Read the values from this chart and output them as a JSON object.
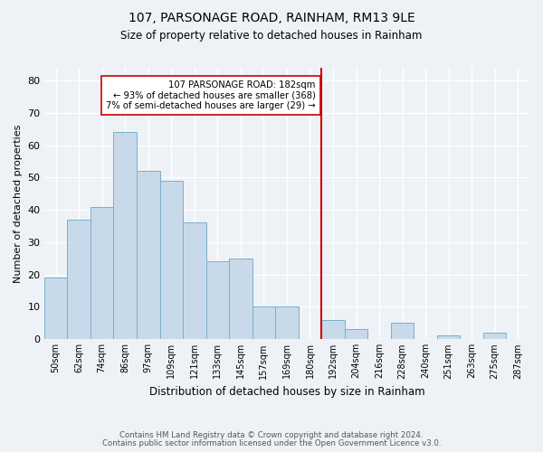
{
  "title": "107, PARSONAGE ROAD, RAINHAM, RM13 9LE",
  "subtitle": "Size of property relative to detached houses in Rainham",
  "xlabel": "Distribution of detached houses by size in Rainham",
  "ylabel": "Number of detached properties",
  "bar_labels": [
    "50sqm",
    "62sqm",
    "74sqm",
    "86sqm",
    "97sqm",
    "109sqm",
    "121sqm",
    "133sqm",
    "145sqm",
    "157sqm",
    "169sqm",
    "180sqm",
    "192sqm",
    "204sqm",
    "216sqm",
    "228sqm",
    "240sqm",
    "251sqm",
    "263sqm",
    "275sqm",
    "287sqm"
  ],
  "bar_values": [
    19,
    37,
    41,
    64,
    52,
    49,
    36,
    24,
    25,
    10,
    10,
    0,
    6,
    3,
    0,
    5,
    0,
    1,
    0,
    2,
    0
  ],
  "bar_color": "#c8daea",
  "bar_edge_color": "#7aafc8",
  "vline_x_index": 11,
  "vline_color": "#cc0000",
  "annotation_title": "107 PARSONAGE ROAD: 182sqm",
  "annotation_line1": "← 93% of detached houses are smaller (368)",
  "annotation_line2": "7% of semi-detached houses are larger (29) →",
  "annotation_box_color": "#ffffff",
  "annotation_box_edge": "#cc0000",
  "ylim": [
    0,
    84
  ],
  "yticks": [
    0,
    10,
    20,
    30,
    40,
    50,
    60,
    70,
    80
  ],
  "footer1": "Contains HM Land Registry data © Crown copyright and database right 2024.",
  "footer2": "Contains public sector information licensed under the Open Government Licence v3.0.",
  "bg_color": "#eef2f7"
}
